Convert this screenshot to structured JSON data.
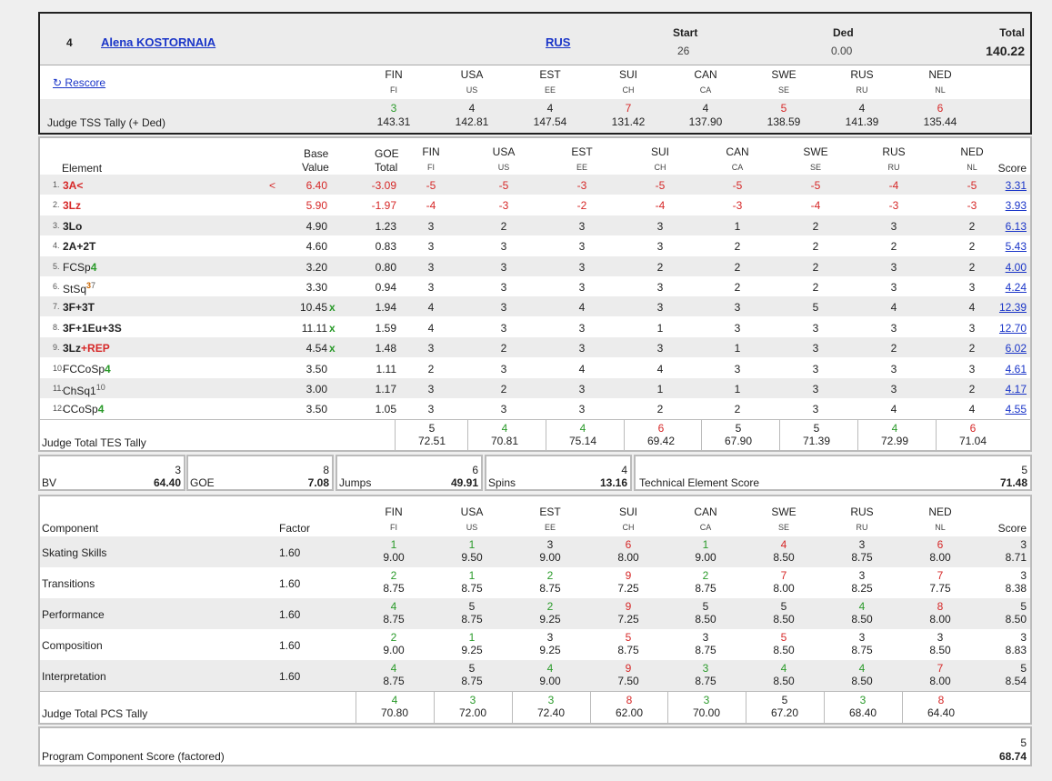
{
  "header": {
    "rank": "4",
    "skater": "Alena KOSTORNAIA",
    "nation": "RUS",
    "start_label": "Start",
    "start_value": "26",
    "ded_label": "Ded",
    "ded_value": "0.00",
    "total_label": "Total",
    "total_value": "140.22",
    "rescore": "Rescore",
    "judges": [
      {
        "code": "FIN",
        "sub": "FI"
      },
      {
        "code": "USA",
        "sub": "US"
      },
      {
        "code": "EST",
        "sub": "EE"
      },
      {
        "code": "SUI",
        "sub": "CH"
      },
      {
        "code": "CAN",
        "sub": "CA"
      },
      {
        "code": "SWE",
        "sub": "SE"
      },
      {
        "code": "RUS",
        "sub": "RU"
      },
      {
        "code": "NED",
        "sub": "NL"
      }
    ],
    "tss_label": "Judge TSS Tally (+ Ded)",
    "tss": [
      {
        "rank": "3",
        "value": "143.31",
        "color": "#2a9a2a"
      },
      {
        "rank": "4",
        "value": "142.81",
        "color": "#222222"
      },
      {
        "rank": "4",
        "value": "147.54",
        "color": "#222222"
      },
      {
        "rank": "7",
        "value": "131.42",
        "color": "#d62828"
      },
      {
        "rank": "4",
        "value": "137.90",
        "color": "#222222"
      },
      {
        "rank": "5",
        "value": "138.59",
        "color": "#d62828"
      },
      {
        "rank": "4",
        "value": "141.39",
        "color": "#222222"
      },
      {
        "rank": "6",
        "value": "135.44",
        "color": "#d62828"
      }
    ]
  },
  "elements": {
    "col_element": "Element",
    "col_base1": "Base",
    "col_base2": "Value",
    "col_goe1": "GOE",
    "col_goe2": "Total",
    "col_score": "Score",
    "rows": [
      {
        "n": "1.",
        "parts": [
          {
            "t": "3A<",
            "c": "#d62828"
          }
        ],
        "sup": "",
        "flag": "<",
        "base": "6.40",
        "x": "",
        "goe": "-3.09",
        "redrow": true,
        "j": [
          "-5",
          "-5",
          "-3",
          "-5",
          "-5",
          "-5",
          "-4",
          "-5"
        ],
        "score": "3.31"
      },
      {
        "n": "2.",
        "parts": [
          {
            "t": "3Lz",
            "c": "#d62828"
          }
        ],
        "sup": "",
        "flag": "",
        "base": "5.90",
        "x": "",
        "goe": "-1.97",
        "redrow": true,
        "j": [
          "-4",
          "-3",
          "-2",
          "-4",
          "-3",
          "-4",
          "-3",
          "-3"
        ],
        "score": "3.93"
      },
      {
        "n": "3.",
        "parts": [
          {
            "t": "3Lo",
            "c": "#222222"
          }
        ],
        "sup": "",
        "flag": "",
        "base": "4.90",
        "x": "",
        "goe": "1.23",
        "redrow": false,
        "j": [
          "3",
          "2",
          "3",
          "3",
          "1",
          "2",
          "3",
          "2"
        ],
        "score": "6.13"
      },
      {
        "n": "4.",
        "parts": [
          {
            "t": "2A+2T",
            "c": "#222222"
          }
        ],
        "sup": "",
        "flag": "",
        "base": "4.60",
        "x": "",
        "goe": "0.83",
        "redrow": false,
        "j": [
          "3",
          "3",
          "3",
          "3",
          "2",
          "2",
          "2",
          "2"
        ],
        "score": "5.43"
      },
      {
        "n": "5.",
        "parts": [
          {
            "t": "FCSp",
            "c": "#222222",
            "w": "normal"
          },
          {
            "t": "4",
            "c": "#2a9a2a"
          }
        ],
        "sup": "",
        "flag": "",
        "base": "3.20",
        "x": "",
        "goe": "0.80",
        "redrow": false,
        "j": [
          "3",
          "3",
          "3",
          "2",
          "2",
          "2",
          "3",
          "2"
        ],
        "score": "4.00"
      },
      {
        "n": "6.",
        "parts": [
          {
            "t": "StSq",
            "c": "#222222",
            "w": "normal"
          },
          {
            "t": "3",
            "c": "#c86400",
            "sup": true
          }
        ],
        "sup": "7",
        "flag": "",
        "base": "3.30",
        "x": "",
        "goe": "0.94",
        "redrow": false,
        "j": [
          "3",
          "3",
          "3",
          "3",
          "2",
          "2",
          "3",
          "3"
        ],
        "score": "4.24"
      },
      {
        "n": "7.",
        "parts": [
          {
            "t": "3F+3T",
            "c": "#222222"
          }
        ],
        "sup": "",
        "flag": "",
        "base": "10.45",
        "x": "x",
        "goe": "1.94",
        "redrow": false,
        "j": [
          "4",
          "3",
          "4",
          "3",
          "3",
          "5",
          "4",
          "4"
        ],
        "score": "12.39"
      },
      {
        "n": "8.",
        "parts": [
          {
            "t": "3F+1Eu+3S",
            "c": "#222222"
          }
        ],
        "sup": "",
        "flag": "",
        "base": "11.11",
        "x": "x",
        "goe": "1.59",
        "redrow": false,
        "j": [
          "4",
          "3",
          "3",
          "1",
          "3",
          "3",
          "3",
          "3"
        ],
        "score": "12.70"
      },
      {
        "n": "9.",
        "parts": [
          {
            "t": "3Lz",
            "c": "#222222"
          },
          {
            "t": "+REP",
            "c": "#d62828"
          }
        ],
        "sup": "",
        "flag": "",
        "base": "4.54",
        "x": "x",
        "goe": "1.48",
        "redrow": false,
        "j": [
          "3",
          "2",
          "3",
          "3",
          "1",
          "3",
          "2",
          "2"
        ],
        "score": "6.02"
      },
      {
        "n": "10.",
        "parts": [
          {
            "t": "FCCoSp",
            "c": "#222222",
            "w": "normal"
          },
          {
            "t": "4",
            "c": "#2a9a2a"
          }
        ],
        "sup": "",
        "flag": "",
        "base": "3.50",
        "x": "",
        "goe": "1.11",
        "redrow": false,
        "j": [
          "2",
          "3",
          "4",
          "4",
          "3",
          "3",
          "3",
          "3"
        ],
        "score": "4.61"
      },
      {
        "n": "11.",
        "parts": [
          {
            "t": "ChSq1",
            "c": "#222222",
            "w": "normal"
          }
        ],
        "sup": "10",
        "flag": "",
        "base": "3.00",
        "x": "",
        "goe": "1.17",
        "redrow": false,
        "j": [
          "3",
          "2",
          "3",
          "1",
          "1",
          "3",
          "3",
          "2"
        ],
        "score": "4.17"
      },
      {
        "n": "12.",
        "parts": [
          {
            "t": "CCoSp",
            "c": "#222222",
            "w": "normal"
          },
          {
            "t": "4",
            "c": "#2a9a2a"
          }
        ],
        "sup": "",
        "flag": "",
        "base": "3.50",
        "x": "",
        "goe": "1.05",
        "redrow": false,
        "j": [
          "3",
          "3",
          "3",
          "2",
          "2",
          "3",
          "4",
          "4"
        ],
        "score": "4.55"
      }
    ],
    "tes_label": "Judge Total TES Tally",
    "tes": [
      {
        "rank": "5",
        "value": "72.51",
        "color": "#222222"
      },
      {
        "rank": "4",
        "value": "70.81",
        "color": "#2a9a2a"
      },
      {
        "rank": "4",
        "value": "75.14",
        "color": "#2a9a2a"
      },
      {
        "rank": "6",
        "value": "69.42",
        "color": "#d62828"
      },
      {
        "rank": "5",
        "value": "67.90",
        "color": "#222222"
      },
      {
        "rank": "5",
        "value": "71.39",
        "color": "#222222"
      },
      {
        "rank": "4",
        "value": "72.99",
        "color": "#2a9a2a"
      },
      {
        "rank": "6",
        "value": "71.04",
        "color": "#d62828"
      }
    ]
  },
  "summary": {
    "bv": {
      "rank": "3",
      "label": "BV",
      "value": "64.40"
    },
    "goe": {
      "rank": "8",
      "label": "GOE",
      "value": "7.08"
    },
    "jumps": {
      "rank": "6",
      "label": "Jumps",
      "value": "49.91"
    },
    "spins": {
      "rank": "4",
      "label": "Spins",
      "value": "13.16"
    },
    "tes": {
      "rank": "5",
      "label": "Technical Element Score",
      "value": "71.48"
    }
  },
  "components": {
    "col_component": "Component",
    "col_factor": "Factor",
    "col_score": "Score",
    "rows": [
      {
        "name": "Skating Skills",
        "factor": "1.60",
        "j": [
          [
            "1",
            "9.00",
            "#2a9a2a"
          ],
          [
            "1",
            "9.50",
            "#2a9a2a"
          ],
          [
            "3",
            "9.00",
            "#222222"
          ],
          [
            "6",
            "8.00",
            "#d62828"
          ],
          [
            "1",
            "9.00",
            "#2a9a2a"
          ],
          [
            "4",
            "8.50",
            "#d62828"
          ],
          [
            "3",
            "8.75",
            "#222222"
          ],
          [
            "6",
            "8.00",
            "#d62828"
          ]
        ],
        "rank": "3",
        "score": "8.71"
      },
      {
        "name": "Transitions",
        "factor": "1.60",
        "j": [
          [
            "2",
            "8.75",
            "#2a9a2a"
          ],
          [
            "1",
            "8.75",
            "#2a9a2a"
          ],
          [
            "2",
            "8.75",
            "#2a9a2a"
          ],
          [
            "9",
            "7.25",
            "#d62828"
          ],
          [
            "2",
            "8.75",
            "#2a9a2a"
          ],
          [
            "7",
            "8.00",
            "#d62828"
          ],
          [
            "3",
            "8.25",
            "#222222"
          ],
          [
            "7",
            "7.75",
            "#d62828"
          ]
        ],
        "rank": "3",
        "score": "8.38"
      },
      {
        "name": "Performance",
        "factor": "1.60",
        "j": [
          [
            "4",
            "8.75",
            "#2a9a2a"
          ],
          [
            "5",
            "8.75",
            "#222222"
          ],
          [
            "2",
            "9.25",
            "#2a9a2a"
          ],
          [
            "9",
            "7.25",
            "#d62828"
          ],
          [
            "5",
            "8.50",
            "#222222"
          ],
          [
            "5",
            "8.50",
            "#222222"
          ],
          [
            "4",
            "8.50",
            "#2a9a2a"
          ],
          [
            "8",
            "8.00",
            "#d62828"
          ]
        ],
        "rank": "5",
        "score": "8.50"
      },
      {
        "name": "Composition",
        "factor": "1.60",
        "j": [
          [
            "2",
            "9.00",
            "#2a9a2a"
          ],
          [
            "1",
            "9.25",
            "#2a9a2a"
          ],
          [
            "3",
            "9.25",
            "#222222"
          ],
          [
            "5",
            "8.75",
            "#d62828"
          ],
          [
            "3",
            "8.75",
            "#222222"
          ],
          [
            "5",
            "8.50",
            "#d62828"
          ],
          [
            "3",
            "8.75",
            "#222222"
          ],
          [
            "3",
            "8.50",
            "#222222"
          ]
        ],
        "rank": "3",
        "score": "8.83"
      },
      {
        "name": "Interpretation",
        "factor": "1.60",
        "j": [
          [
            "4",
            "8.75",
            "#2a9a2a"
          ],
          [
            "5",
            "8.75",
            "#222222"
          ],
          [
            "4",
            "9.00",
            "#2a9a2a"
          ],
          [
            "9",
            "7.50",
            "#d62828"
          ],
          [
            "3",
            "8.75",
            "#2a9a2a"
          ],
          [
            "4",
            "8.50",
            "#2a9a2a"
          ],
          [
            "4",
            "8.50",
            "#2a9a2a"
          ],
          [
            "7",
            "8.00",
            "#d62828"
          ]
        ],
        "rank": "5",
        "score": "8.54"
      }
    ],
    "pcs_label": "Judge Total PCS Tally",
    "pcs": [
      {
        "rank": "4",
        "value": "70.80",
        "color": "#2a9a2a"
      },
      {
        "rank": "3",
        "value": "72.00",
        "color": "#2a9a2a"
      },
      {
        "rank": "3",
        "value": "72.40",
        "color": "#2a9a2a"
      },
      {
        "rank": "8",
        "value": "62.00",
        "color": "#d62828"
      },
      {
        "rank": "3",
        "value": "70.00",
        "color": "#2a9a2a"
      },
      {
        "rank": "5",
        "value": "67.20",
        "color": "#222222"
      },
      {
        "rank": "3",
        "value": "68.40",
        "color": "#2a9a2a"
      },
      {
        "rank": "8",
        "value": "64.40",
        "color": "#d62828"
      }
    ]
  },
  "pcs_total": {
    "label": "Program Component Score (factored)",
    "rank": "5",
    "value": "68.74"
  }
}
